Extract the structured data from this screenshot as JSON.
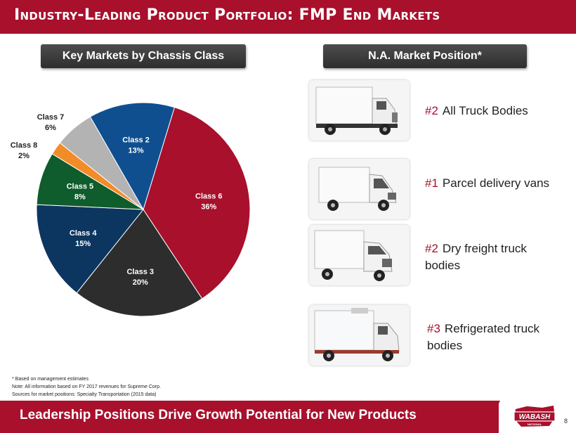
{
  "title": "Industry-Leading Product Portfolio: FMP End Markets",
  "left_header": "Key Markets by Chassis Class",
  "right_header": "N.A. Market Position*",
  "chart_data": {
    "type": "pie",
    "categories": [
      "Class 6",
      "Class 3",
      "Class 4",
      "Class 5",
      "Class 8",
      "Class 7",
      "Class 2"
    ],
    "values": [
      36,
      20,
      15,
      8,
      2,
      6,
      13
    ],
    "labels": [
      {
        "name": "Class 6",
        "pct": "36%"
      },
      {
        "name": "Class 3",
        "pct": "20%"
      },
      {
        "name": "Class 4",
        "pct": "15%"
      },
      {
        "name": "Class 5",
        "pct": "8%"
      },
      {
        "name": "Class 8",
        "pct": "2%"
      },
      {
        "name": "Class 7",
        "pct": "6%"
      },
      {
        "name": "Class 2",
        "pct": "13%"
      }
    ],
    "colors": [
      "#a8102c",
      "#2d2d2d",
      "#0c3660",
      "#0f5c2c",
      "#f28c28",
      "#b3b3b3",
      "#0f4f8f"
    ],
    "start_angle_deg": 17,
    "direction": "clockwise"
  },
  "positions": [
    {
      "rank": "#2",
      "text": "All Truck Bodies",
      "icon": "box-truck-image"
    },
    {
      "rank": "#1",
      "text": "Parcel delivery vans",
      "icon": "parcel-van-image"
    },
    {
      "rank": "#2",
      "text": "Dry freight truck bodies",
      "icon": "dry-freight-truck-image"
    },
    {
      "rank": "#3",
      "text": "Refrigerated truck bodies",
      "icon": "refrigerated-truck-image"
    }
  ],
  "notes": [
    "* Based on management estimates",
    "Note: All information based on FY 2017 revenues for Supreme Corp.",
    "Sources for market positions: Specialty Transportation (2015 data)"
  ],
  "footer": "Leadership Positions Drive Growth Potential for New Products",
  "logo_text": "WABASH",
  "logo_subtext": "NATIONAL",
  "page_number": "8"
}
